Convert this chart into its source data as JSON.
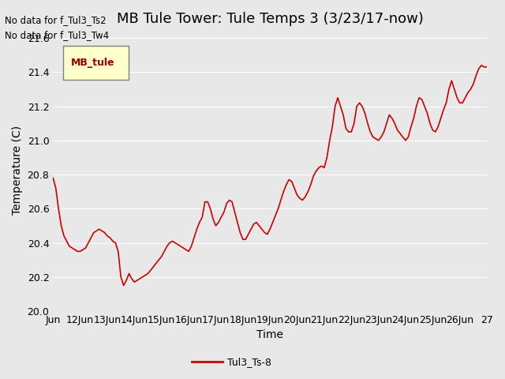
{
  "title": "MB Tule Tower: Tule Temps 3 (3/23/17-now)",
  "xlabel": "Time",
  "ylabel": "Temperature (C)",
  "no_data_text": [
    "No data for f_Tul3_Ts2",
    "No data for f_Tul3_Tw4"
  ],
  "legend_box_label": "MB_tule",
  "legend_series_label": "Tul3_Ts-8",
  "line_color": "#cc0000",
  "ylim": [
    20.0,
    21.6
  ],
  "yticks": [
    20.0,
    20.2,
    20.4,
    20.6,
    20.8,
    21.0,
    21.2,
    21.4,
    21.6
  ],
  "x_tick_labels": [
    "Jun",
    "12Jun",
    "13Jun",
    "14Jun",
    "15Jun",
    "16Jun",
    "17Jun",
    "18Jun",
    "19Jun",
    "20Jun",
    "21Jun",
    "22Jun",
    "23Jun",
    "24Jun",
    "25Jun",
    "26Jun",
    "27"
  ],
  "background_color": "#e8e8e8",
  "plot_bg_color": "#e8e8e8",
  "title_fontsize": 13,
  "axis_fontsize": 10,
  "tick_fontsize": 9,
  "x_values": [
    11,
    11.1,
    11.2,
    11.3,
    11.4,
    11.5,
    11.6,
    11.7,
    11.8,
    11.9,
    12.0,
    12.1,
    12.2,
    12.3,
    12.4,
    12.5,
    12.6,
    12.7,
    12.8,
    12.9,
    13.0,
    13.1,
    13.2,
    13.3,
    13.4,
    13.5,
    13.6,
    13.7,
    13.8,
    13.9,
    14.0,
    14.1,
    14.2,
    14.3,
    14.4,
    14.5,
    14.6,
    14.7,
    14.8,
    14.9,
    15.0,
    15.1,
    15.2,
    15.3,
    15.4,
    15.5,
    15.6,
    15.7,
    15.8,
    15.9,
    16.0,
    16.1,
    16.2,
    16.3,
    16.4,
    16.5,
    16.6,
    16.7,
    16.8,
    16.9,
    17.0,
    17.1,
    17.2,
    17.3,
    17.4,
    17.5,
    17.6,
    17.7,
    17.8,
    17.9,
    18.0,
    18.1,
    18.2,
    18.3,
    18.4,
    18.5,
    18.6,
    18.7,
    18.8,
    18.9,
    19.0,
    19.1,
    19.2,
    19.3,
    19.4,
    19.5,
    19.6,
    19.7,
    19.8,
    19.9,
    20.0,
    20.1,
    20.2,
    20.3,
    20.4,
    20.5,
    20.6,
    20.7,
    20.8,
    20.9,
    21.0,
    21.1,
    21.2,
    21.3,
    21.4,
    21.5,
    21.6,
    21.7,
    21.8,
    21.9,
    22.0,
    22.1,
    22.2,
    22.3,
    22.4,
    22.5,
    22.6,
    22.7,
    22.8,
    22.9,
    23.0,
    23.1,
    23.2,
    23.3,
    23.4,
    23.5,
    23.6,
    23.7,
    23.8,
    23.9,
    24.0,
    24.1,
    24.2,
    24.3,
    24.4,
    24.5,
    24.6,
    24.7,
    24.8,
    24.9,
    25.0,
    25.1,
    25.2,
    25.3,
    25.4,
    25.5,
    25.6,
    25.7,
    25.8,
    25.9,
    26.0,
    26.1,
    26.2,
    26.3,
    26.4,
    26.5,
    26.6,
    26.7,
    26.8,
    26.9,
    27.0
  ],
  "y_values": [
    20.78,
    20.72,
    20.6,
    20.5,
    20.44,
    20.41,
    20.38,
    20.37,
    20.36,
    20.35,
    20.35,
    20.36,
    20.37,
    20.4,
    20.43,
    20.46,
    20.47,
    20.48,
    20.47,
    20.46,
    20.44,
    20.43,
    20.41,
    20.4,
    20.35,
    20.2,
    20.15,
    20.18,
    20.22,
    20.19,
    20.17,
    20.18,
    20.19,
    20.2,
    20.21,
    20.22,
    20.24,
    20.26,
    20.28,
    20.3,
    20.32,
    20.35,
    20.38,
    20.4,
    20.41,
    20.4,
    20.39,
    20.38,
    20.37,
    20.36,
    20.35,
    20.38,
    20.43,
    20.48,
    20.52,
    20.55,
    20.64,
    20.64,
    20.6,
    20.54,
    20.5,
    20.52,
    20.55,
    20.58,
    20.63,
    20.65,
    20.64,
    20.58,
    20.52,
    20.46,
    20.42,
    20.42,
    20.45,
    20.48,
    20.51,
    20.52,
    20.5,
    20.48,
    20.46,
    20.45,
    20.48,
    20.52,
    20.56,
    20.6,
    20.65,
    20.7,
    20.74,
    20.77,
    20.76,
    20.72,
    20.68,
    20.66,
    20.65,
    20.67,
    20.7,
    20.74,
    20.79,
    20.82,
    20.84,
    20.85,
    20.84,
    20.9,
    21.0,
    21.08,
    21.2,
    21.25,
    21.2,
    21.15,
    21.07,
    21.05,
    21.05,
    21.1,
    21.2,
    21.22,
    21.2,
    21.16,
    21.1,
    21.05,
    21.02,
    21.01,
    21.0,
    21.02,
    21.05,
    21.1,
    21.15,
    21.13,
    21.1,
    21.06,
    21.04,
    21.02,
    21.0,
    21.02,
    21.08,
    21.13,
    21.2,
    21.25,
    21.24,
    21.2,
    21.16,
    21.1,
    21.06,
    21.05,
    21.08,
    21.13,
    21.18,
    21.22,
    21.3,
    21.35,
    21.3,
    21.25,
    21.22,
    21.22,
    21.25,
    21.28,
    21.3,
    21.33,
    21.38,
    21.42,
    21.44,
    21.43,
    21.43
  ]
}
